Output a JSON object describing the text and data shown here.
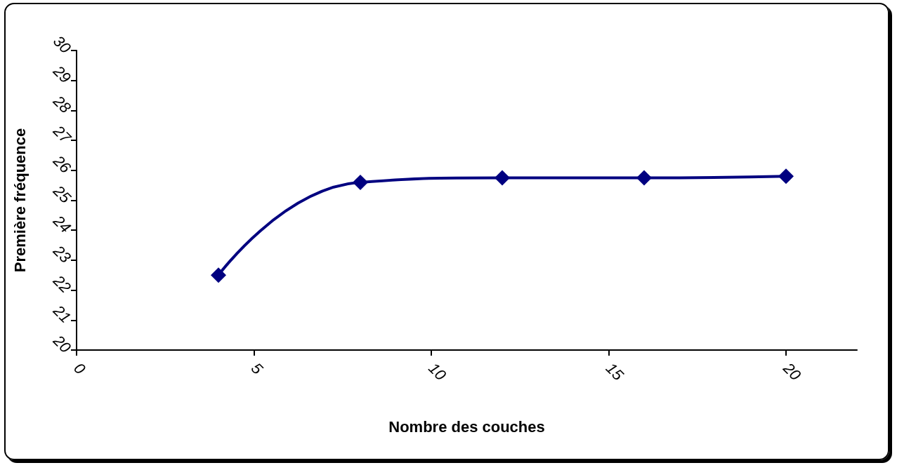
{
  "chart_data": {
    "type": "line",
    "xlabel": "Nombre des couches",
    "ylabel": "Première fréquence",
    "x": [
      4,
      8,
      12,
      16,
      20
    ],
    "series": [
      {
        "color": "#000080",
        "values": [
          22.5,
          25.6,
          25.75,
          25.75,
          25.8
        ]
      }
    ],
    "xlim": [
      0,
      22
    ],
    "xticks": [
      0,
      5,
      10,
      15,
      20
    ],
    "ylim": [
      20,
      30
    ],
    "yticks": [
      20,
      21,
      22,
      23,
      24,
      25,
      26,
      27,
      28,
      29,
      30
    ],
    "grid": false,
    "marker": "diamond",
    "line_style": "solid"
  }
}
